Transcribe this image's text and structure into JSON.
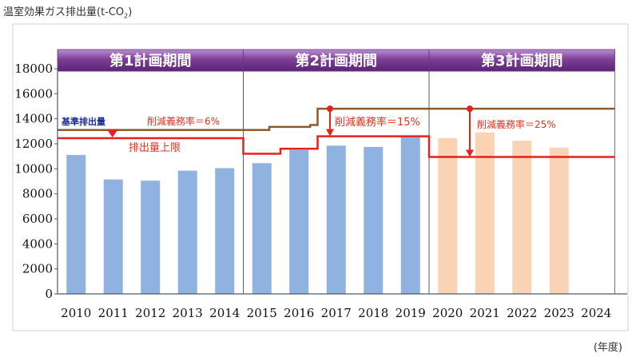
{
  "chart_data": {
    "type": "bar",
    "title_main": "温室効果ガス排出量(t-CO",
    "title_sub": "2",
    "title_close": ")",
    "xlabel": "(年度)",
    "ylim": [
      0,
      18000
    ],
    "yticks": [
      0,
      2000,
      4000,
      6000,
      8000,
      10000,
      12000,
      14000,
      16000,
      18000
    ],
    "categories": [
      "2010",
      "2011",
      "2012",
      "2013",
      "2014",
      "2015",
      "2016",
      "2017",
      "2018",
      "2019",
      "2020",
      "2021",
      "2022",
      "2023",
      "2024"
    ],
    "series": [
      {
        "values": [
          11100,
          9150,
          9050,
          9850,
          10050,
          10450,
          11500,
          11850,
          11750,
          12600,
          12450,
          12900,
          12250,
          11700,
          null
        ],
        "colors": [
          "#8fb2e1",
          "#8fb2e1",
          "#8fb2e1",
          "#8fb2e1",
          "#8fb2e1",
          "#8fb2e1",
          "#8fb2e1",
          "#8fb2e1",
          "#8fb2e1",
          "#8fb2e1",
          "#f9d3b4",
          "#f9d3b4",
          "#f9d3b4",
          "#f9d3b4",
          "#f9d3b4"
        ]
      }
    ],
    "periods": [
      {
        "label": "第1計画期間",
        "from": "2010",
        "to": "2014"
      },
      {
        "label": "第2計画期間",
        "from": "2015",
        "to": "2019"
      },
      {
        "label": "第3計画期間",
        "from": "2020",
        "to": "2024"
      }
    ],
    "baseline_steps": [
      {
        "from": -0.5,
        "to": 5.2,
        "value": 13100
      },
      {
        "from": 5.2,
        "to": 6.3,
        "value": 13350
      },
      {
        "from": 6.3,
        "to": 6.5,
        "value": 13500
      },
      {
        "from": 6.5,
        "to": 14.5,
        "value": 14800
      }
    ],
    "cap_steps": [
      {
        "from": -0.5,
        "to": 4.5,
        "value": 12450
      },
      {
        "from": 4.5,
        "to": 5.5,
        "value": 11200
      },
      {
        "from": 5.5,
        "to": 6.5,
        "value": 11600
      },
      {
        "from": 6.5,
        "to": 9.5,
        "value": 12600
      },
      {
        "from": 9.5,
        "to": 14.5,
        "value": 10950
      }
    ],
    "annotations": {
      "baseline_label": "基準排出量",
      "cap_label": "排出量上限",
      "rate1": "削減義務率＝6%",
      "rate2": "削減義務率＝15%",
      "rate3": "削減義務率＝25%"
    },
    "colors": {
      "baseline": "#8b5a2b",
      "cap": "#e8201a",
      "period_band": "#7d3f98",
      "axis": "#4a5a7a",
      "grid_frame": "#9aa3b5"
    }
  }
}
